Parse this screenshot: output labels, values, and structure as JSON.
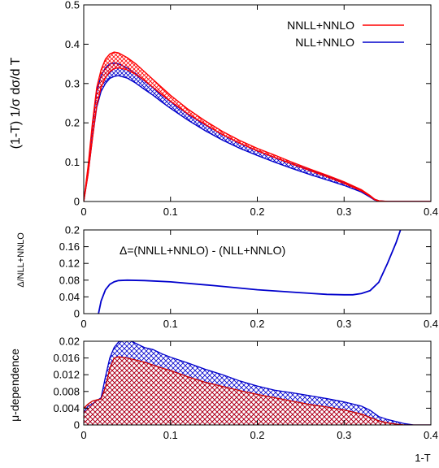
{
  "chart_data": [
    {
      "type": "area",
      "ylabel": "(1-T) 1/σ dσ/d T",
      "xlim": [
        0,
        0.4
      ],
      "ylim": [
        0,
        0.5
      ],
      "xticks": [
        0,
        0.1,
        0.2,
        0.3,
        0.4
      ],
      "yticks": [
        0,
        0.1,
        0.2,
        0.3,
        0.4,
        0.5
      ],
      "legend_position": "top-right",
      "x": [
        0,
        0.005,
        0.01,
        0.015,
        0.02,
        0.025,
        0.03,
        0.035,
        0.04,
        0.05,
        0.06,
        0.07,
        0.08,
        0.09,
        0.1,
        0.12,
        0.14,
        0.16,
        0.18,
        0.2,
        0.22,
        0.24,
        0.26,
        0.28,
        0.3,
        0.32,
        0.33,
        0.335,
        0.34,
        0.35,
        0.37,
        0.4
      ],
      "series": [
        {
          "name": "NNLL+NNLO",
          "color": "#ff0000",
          "fill": "hatch",
          "upper": [
            0,
            0.09,
            0.2,
            0.29,
            0.335,
            0.362,
            0.375,
            0.38,
            0.378,
            0.366,
            0.35,
            0.33,
            0.31,
            0.29,
            0.27,
            0.235,
            0.205,
            0.178,
            0.155,
            0.135,
            0.118,
            0.1,
            0.083,
            0.067,
            0.05,
            0.03,
            0.015,
            0.006,
            0.002,
            0,
            0,
            0
          ],
          "lower": [
            0,
            0.07,
            0.16,
            0.245,
            0.29,
            0.315,
            0.33,
            0.338,
            0.34,
            0.335,
            0.323,
            0.308,
            0.29,
            0.272,
            0.255,
            0.223,
            0.196,
            0.17,
            0.148,
            0.129,
            0.112,
            0.095,
            0.079,
            0.063,
            0.046,
            0.027,
            0.013,
            0.005,
            0.001,
            0,
            0,
            0
          ]
        },
        {
          "name": "NLL+NNLO",
          "color": "#0000cc",
          "fill": "hatch",
          "upper": [
            0,
            0.085,
            0.19,
            0.28,
            0.32,
            0.34,
            0.35,
            0.352,
            0.35,
            0.34,
            0.325,
            0.307,
            0.289,
            0.271,
            0.254,
            0.222,
            0.195,
            0.17,
            0.148,
            0.129,
            0.112,
            0.096,
            0.08,
            0.065,
            0.049,
            0.029,
            0.014,
            0.006,
            0.002,
            0,
            0,
            0
          ],
          "lower": [
            0,
            0.07,
            0.16,
            0.24,
            0.28,
            0.3,
            0.313,
            0.318,
            0.32,
            0.314,
            0.301,
            0.285,
            0.27,
            0.253,
            0.237,
            0.207,
            0.18,
            0.156,
            0.135,
            0.117,
            0.1,
            0.084,
            0.069,
            0.055,
            0.041,
            0.024,
            0.011,
            0.004,
            0.001,
            0,
            0,
            0
          ]
        }
      ]
    },
    {
      "type": "line",
      "ylabel": "Δ/NLL+NNLO",
      "annotation": "Δ=(NNLL+NNLO) - (NLL+NNLO)",
      "xlim": [
        0,
        0.4
      ],
      "ylim": [
        0,
        0.2
      ],
      "xticks": [
        0,
        0.1,
        0.2,
        0.3,
        0.4
      ],
      "yticks": [
        0,
        0.04,
        0.08,
        0.12,
        0.16,
        0.2
      ],
      "series": [
        {
          "color": "#0000cc",
          "x": [
            0.017,
            0.02,
            0.025,
            0.03,
            0.035,
            0.04,
            0.05,
            0.07,
            0.1,
            0.15,
            0.2,
            0.25,
            0.28,
            0.3,
            0.31,
            0.32,
            0.33,
            0.34,
            0.35,
            0.36,
            0.365,
            0.37
          ],
          "y": [
            0,
            0.03,
            0.057,
            0.07,
            0.076,
            0.079,
            0.08,
            0.079,
            0.076,
            0.067,
            0.057,
            0.05,
            0.046,
            0.045,
            0.045,
            0.048,
            0.055,
            0.075,
            0.12,
            0.17,
            0.2,
            0.23
          ]
        }
      ]
    },
    {
      "type": "area",
      "ylabel": "μ-dependence",
      "xlabel": "1-T",
      "xlim": [
        0,
        0.4
      ],
      "ylim": [
        0,
        0.02
      ],
      "xticks": [
        0,
        0.1,
        0.2,
        0.3,
        0.4
      ],
      "yticks": [
        0,
        0.004,
        0.008,
        0.012,
        0.016,
        0.02
      ],
      "x": [
        0,
        0.005,
        0.01,
        0.015,
        0.02,
        0.025,
        0.03,
        0.035,
        0.04,
        0.05,
        0.06,
        0.07,
        0.08,
        0.09,
        0.1,
        0.12,
        0.14,
        0.16,
        0.18,
        0.2,
        0.22,
        0.24,
        0.26,
        0.28,
        0.3,
        0.32,
        0.33,
        0.34,
        0.35,
        0.36,
        0.37,
        0.38,
        0.39,
        0.4
      ],
      "series": [
        {
          "color": "#0000cc",
          "fill": "hatch",
          "values": [
            0.003,
            0.0045,
            0.005,
            0.0058,
            0.0065,
            0.0115,
            0.016,
            0.0185,
            0.0198,
            0.0205,
            0.0195,
            0.0185,
            0.018,
            0.017,
            0.0162,
            0.0148,
            0.0133,
            0.012,
            0.0105,
            0.0093,
            0.0083,
            0.0077,
            0.007,
            0.0063,
            0.0055,
            0.0045,
            0.0035,
            0.002,
            0.0013,
            0.0008,
            0.0003,
            0,
            0,
            0
          ]
        },
        {
          "color": "#cc0000",
          "fill": "hatch",
          "values": [
            0.004,
            0.005,
            0.0057,
            0.006,
            0.0062,
            0.009,
            0.0135,
            0.016,
            0.0163,
            0.016,
            0.0155,
            0.015,
            0.0143,
            0.0136,
            0.013,
            0.0115,
            0.0102,
            0.0092,
            0.0082,
            0.0073,
            0.0065,
            0.0057,
            0.0049,
            0.0043,
            0.0036,
            0.0026,
            0.0018,
            0.001,
            0.0005,
            0.0002,
            0,
            0,
            0,
            0
          ]
        }
      ]
    }
  ]
}
